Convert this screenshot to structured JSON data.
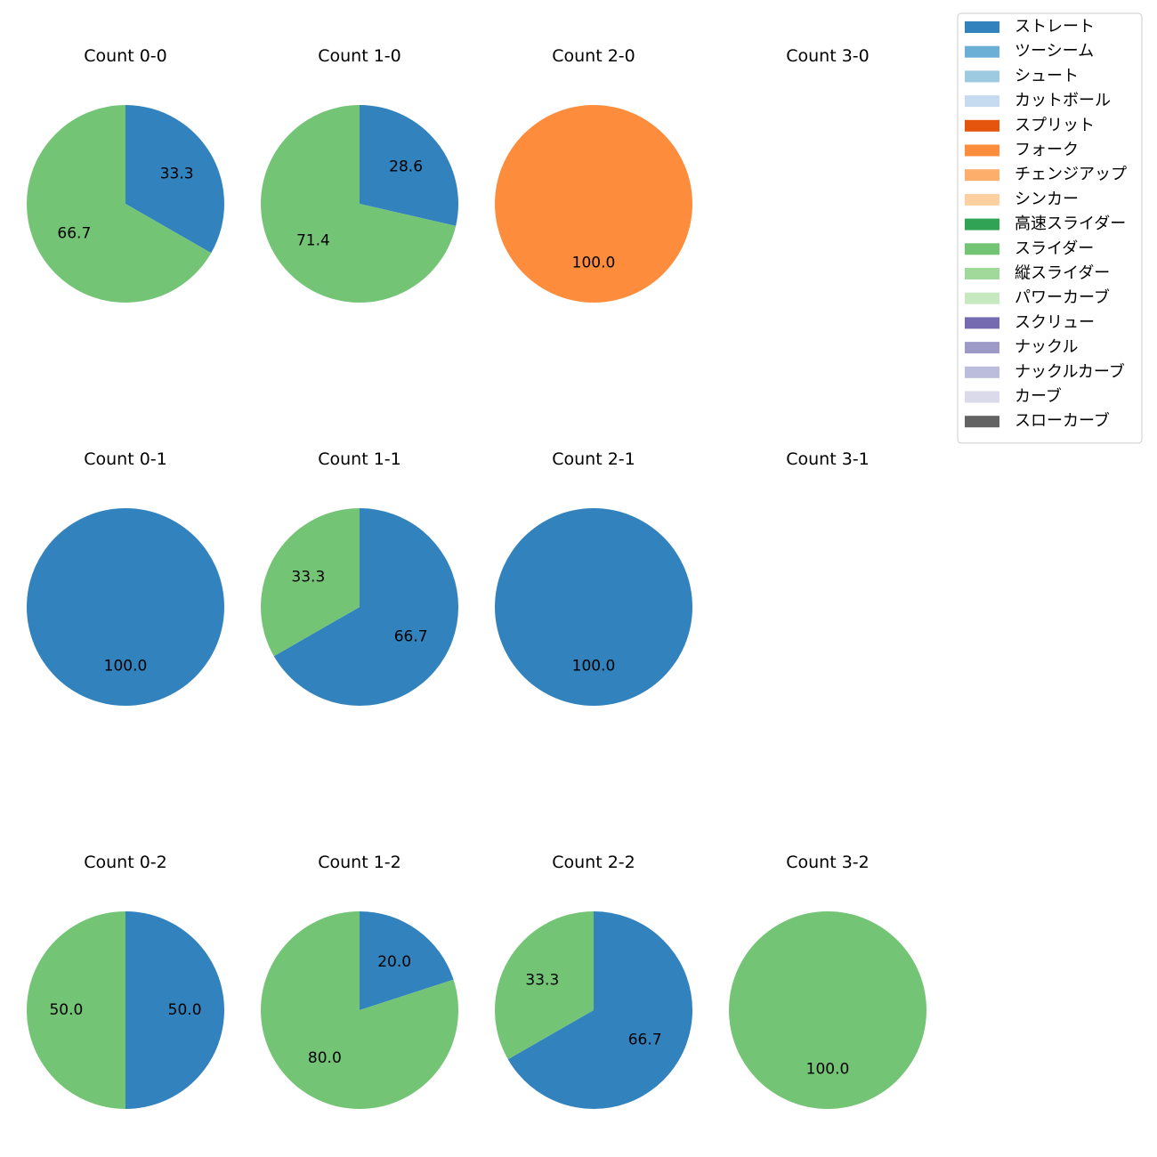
{
  "colors": {
    "ストレート": "#3182bd",
    "ツーシーム": "#6baed6",
    "シュート": "#9ecae1",
    "カットボール": "#c6dbef",
    "スプリット": "#e6550d",
    "フォーク": "#fd8d3c",
    "チェンジアップ": "#fdae6b",
    "シンカー": "#fdd0a2",
    "高速スライダー": "#31a354",
    "スライダー": "#74c476",
    "縦スライダー": "#a1d99b",
    "パワーカーブ": "#c7e9c0",
    "スクリュー": "#756bb1",
    "ナックル": "#9e9ac8",
    "ナックルカーブ": "#bcbddc",
    "カーブ": "#dadaeb",
    "スローカーブ": "#636363"
  },
  "chart_data": {
    "type": "pie",
    "legend": {
      "position": "top-right",
      "entries": [
        "ストレート",
        "ツーシーム",
        "シュート",
        "カットボール",
        "スプリット",
        "フォーク",
        "チェンジアップ",
        "シンカー",
        "高速スライダー",
        "スライダー",
        "縦スライダー",
        "パワーカーブ",
        "スクリュー",
        "ナックル",
        "ナックルカーブ",
        "カーブ",
        "スローカーブ"
      ]
    },
    "subplots": [
      {
        "title": "Count 0-0",
        "row": 0,
        "col": 0,
        "slices": [
          {
            "label": "ストレート",
            "value": 33.3
          },
          {
            "label": "スライダー",
            "value": 66.7
          }
        ]
      },
      {
        "title": "Count 1-0",
        "row": 0,
        "col": 1,
        "slices": [
          {
            "label": "ストレート",
            "value": 28.6
          },
          {
            "label": "スライダー",
            "value": 71.4
          }
        ]
      },
      {
        "title": "Count 2-0",
        "row": 0,
        "col": 2,
        "slices": [
          {
            "label": "フォーク",
            "value": 100.0
          }
        ]
      },
      {
        "title": "Count 3-0",
        "row": 0,
        "col": 3,
        "slices": []
      },
      {
        "title": "Count 0-1",
        "row": 1,
        "col": 0,
        "slices": [
          {
            "label": "ストレート",
            "value": 100.0
          }
        ]
      },
      {
        "title": "Count 1-1",
        "row": 1,
        "col": 1,
        "slices": [
          {
            "label": "ストレート",
            "value": 66.7
          },
          {
            "label": "スライダー",
            "value": 33.3
          }
        ]
      },
      {
        "title": "Count 2-1",
        "row": 1,
        "col": 2,
        "slices": [
          {
            "label": "ストレート",
            "value": 100.0
          }
        ]
      },
      {
        "title": "Count 3-1",
        "row": 1,
        "col": 3,
        "slices": []
      },
      {
        "title": "Count 0-2",
        "row": 2,
        "col": 0,
        "slices": [
          {
            "label": "ストレート",
            "value": 50.0
          },
          {
            "label": "スライダー",
            "value": 50.0
          }
        ]
      },
      {
        "title": "Count 1-2",
        "row": 2,
        "col": 1,
        "slices": [
          {
            "label": "ストレート",
            "value": 20.0
          },
          {
            "label": "スライダー",
            "value": 80.0
          }
        ]
      },
      {
        "title": "Count 2-2",
        "row": 2,
        "col": 2,
        "slices": [
          {
            "label": "ストレート",
            "value": 66.7
          },
          {
            "label": "スライダー",
            "value": 33.3
          }
        ]
      },
      {
        "title": "Count 3-2",
        "row": 2,
        "col": 3,
        "slices": [
          {
            "label": "スライダー",
            "value": 100.0
          }
        ]
      }
    ]
  }
}
